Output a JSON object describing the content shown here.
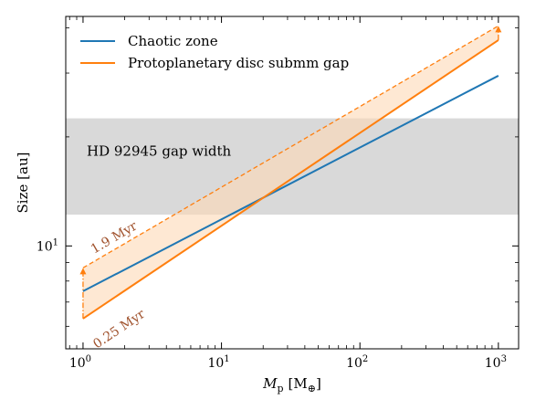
{
  "chart_data": {
    "type": "line",
    "xscale": "log",
    "yscale": "log",
    "xlim": [
      0.75,
      1400
    ],
    "ylim": [
      5.2,
      43
    ],
    "xlabel_main": "M",
    "xlabel_sub": "p",
    "xlabel_unit": "[M",
    "xlabel_unit_sub": "⊕",
    "xlabel_unit_close": "]",
    "ylabel": "Size [au]",
    "x_ticks": [
      {
        "value": 1,
        "base": "10",
        "exp": "0"
      },
      {
        "value": 10,
        "base": "10",
        "exp": "1"
      },
      {
        "value": 100,
        "base": "10",
        "exp": "2"
      },
      {
        "value": 1000,
        "base": "10",
        "exp": "3"
      }
    ],
    "y_ticks": [
      {
        "value": 10,
        "base": "10",
        "exp": "1"
      }
    ],
    "legend_position": "top-left",
    "series": [
      {
        "name": "Chaotic zone",
        "color": "#1f77b4",
        "x": [
          1,
          1000
        ],
        "y": [
          7.5,
          29.5
        ]
      },
      {
        "name": "Protoplanetary disc submm gap",
        "color": "#ff7f0e",
        "x": [
          1,
          1000
        ],
        "y": [
          6.3,
          37.0
        ]
      }
    ],
    "upper_bound": {
      "color": "#ff7f0e",
      "fill": "#fdd9b5",
      "x": [
        1,
        1000
      ],
      "y": [
        8.7,
        40.5
      ]
    },
    "band": {
      "label": "HD 92945 gap width",
      "ymin": 12.2,
      "ymax": 22.5,
      "color": "#d9d9d9"
    },
    "annotations": [
      {
        "text": "1.9 Myr",
        "color": "#a0522d"
      },
      {
        "text": "0.25 Myr",
        "color": "#a0522d"
      }
    ]
  }
}
